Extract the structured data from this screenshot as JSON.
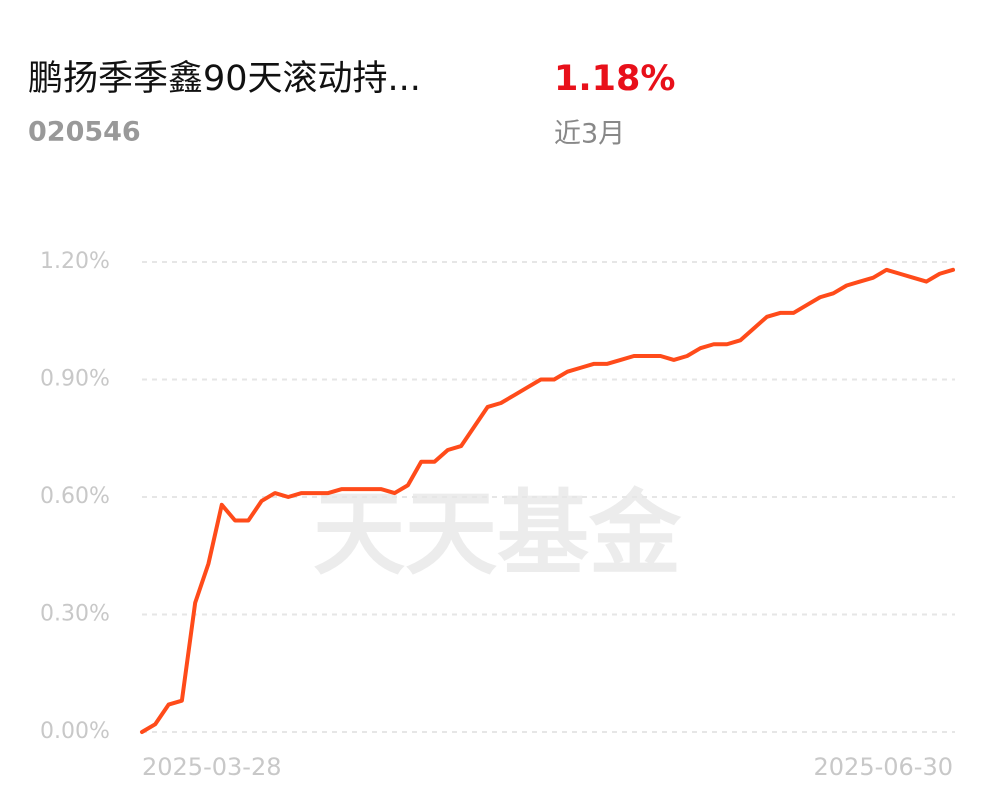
{
  "header": {
    "title": "鹏扬季季鑫90天滚动持...",
    "code": "020546",
    "return": "1.18%",
    "period": "近3月"
  },
  "chart_data": {
    "type": "line",
    "watermark": "天天基金",
    "categories": [
      "2025-03-28",
      null,
      null,
      null,
      null,
      null,
      null,
      null,
      null,
      null,
      null,
      null,
      null,
      null,
      null,
      null,
      null,
      null,
      null,
      null,
      null,
      null,
      null,
      null,
      null,
      null,
      null,
      null,
      null,
      null,
      null,
      null,
      null,
      null,
      null,
      null,
      null,
      null,
      null,
      null,
      null,
      null,
      null,
      null,
      null,
      null,
      null,
      null,
      null,
      null,
      null,
      null,
      null,
      null,
      null,
      null,
      null,
      null,
      null,
      null,
      null,
      "2025-06-30"
    ],
    "series": [
      {
        "color": "#ff4b1a",
        "values": [
          0,
          0.02,
          0.07,
          0.08,
          0.33,
          0.43,
          0.58,
          0.54,
          0.54,
          0.59,
          0.61,
          0.6,
          0.61,
          0.61,
          0.61,
          0.62,
          0.62,
          0.62,
          0.62,
          0.61,
          0.63,
          0.69,
          0.69,
          0.72,
          0.73,
          0.78,
          0.83,
          0.84,
          0.86,
          0.88,
          0.9,
          0.9,
          0.92,
          0.93,
          0.94,
          0.94,
          0.95,
          0.96,
          0.96,
          0.96,
          0.95,
          0.96,
          0.98,
          0.99,
          0.99,
          1.0,
          1.03,
          1.06,
          1.07,
          1.07,
          1.09,
          1.11,
          1.12,
          1.14,
          1.15,
          1.16,
          1.18,
          1.17,
          1.16,
          1.15,
          1.17,
          1.18
        ]
      }
    ],
    "ylim": [
      0,
      1.2
    ],
    "yticks": [
      {
        "value": 0,
        "label": "0.00%"
      },
      {
        "value": 0.3,
        "label": "0.30%"
      },
      {
        "value": 0.6,
        "label": "0.60%"
      },
      {
        "value": 0.9,
        "label": "0.90%"
      },
      {
        "value": 1.2,
        "label": "1.20%"
      }
    ],
    "grid": true
  }
}
